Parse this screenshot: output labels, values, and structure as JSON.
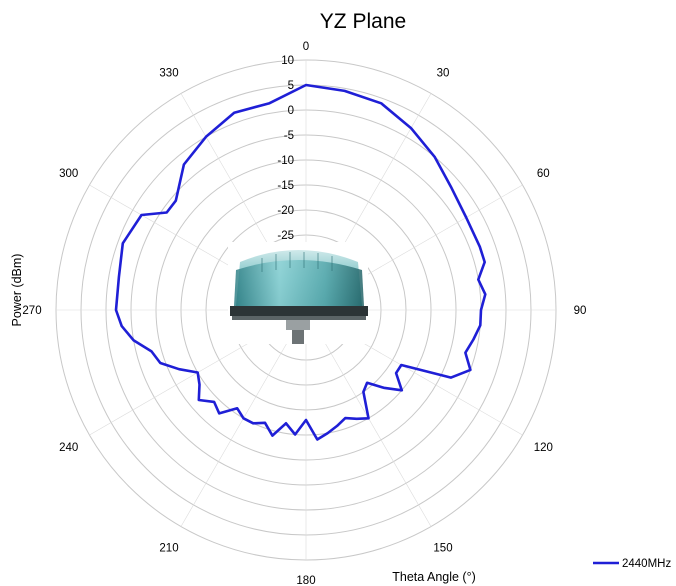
{
  "chart_data": {
    "type": "polar-line",
    "title": "YZ Plane",
    "xlabel": "Theta  Angle (°)",
    "ylabel": "Power (dBm)",
    "angle_unit": "degrees",
    "angle_zero": "top",
    "angle_direction": "clockwise",
    "rlim": [
      -40,
      10
    ],
    "radial_ticks": [
      10,
      5,
      0,
      -5,
      -10,
      -15,
      -20,
      -25
    ],
    "radial_tick_labels": [
      "10",
      "5",
      "0",
      "-5",
      "-10",
      "-15",
      "-20",
      "-25"
    ],
    "angular_ticks": [
      0,
      30,
      60,
      90,
      120,
      150,
      180,
      210,
      240,
      270,
      300,
      330
    ],
    "angular_tick_labels": [
      "0",
      "30",
      "60",
      "90",
      "120",
      "150",
      "180",
      "210",
      "240",
      "270",
      "300",
      "330"
    ],
    "grid": true,
    "legend_position": "bottom-right",
    "series": [
      {
        "name": "2440MHz",
        "color": "#1f1fd6",
        "theta": [
          0,
          10,
          20,
          30,
          40,
          50,
          60,
          70,
          75,
          80,
          85,
          90,
          95,
          100,
          105,
          110,
          115,
          120,
          125,
          130,
          135,
          140,
          145,
          150,
          155,
          160,
          165,
          170,
          175,
          180,
          185,
          190,
          195,
          200,
          205,
          210,
          215,
          220,
          225,
          230,
          235,
          240,
          245,
          250,
          255,
          260,
          265,
          270,
          280,
          290,
          300,
          305,
          310,
          320,
          330,
          340,
          350
        ],
        "r": [
          5,
          4.5,
          4,
          2,
          0,
          -2,
          -3,
          -3,
          -3,
          -5,
          -4,
          -5,
          -5,
          -6,
          -7,
          -5,
          -8,
          -18,
          -18,
          -15,
          -18,
          -21,
          -20,
          -15,
          -16,
          -17,
          -16,
          -15,
          -14,
          -18,
          -15,
          -17,
          -14,
          -16,
          -15,
          -15,
          -16,
          -13,
          -14,
          -12,
          -14,
          -15,
          -12,
          -9,
          -8,
          -5,
          -3,
          -2,
          -2,
          -1,
          -2,
          -6,
          -6,
          -2,
          0,
          2,
          2
        ]
      }
    ],
    "inset_image": "antenna product photo"
  }
}
